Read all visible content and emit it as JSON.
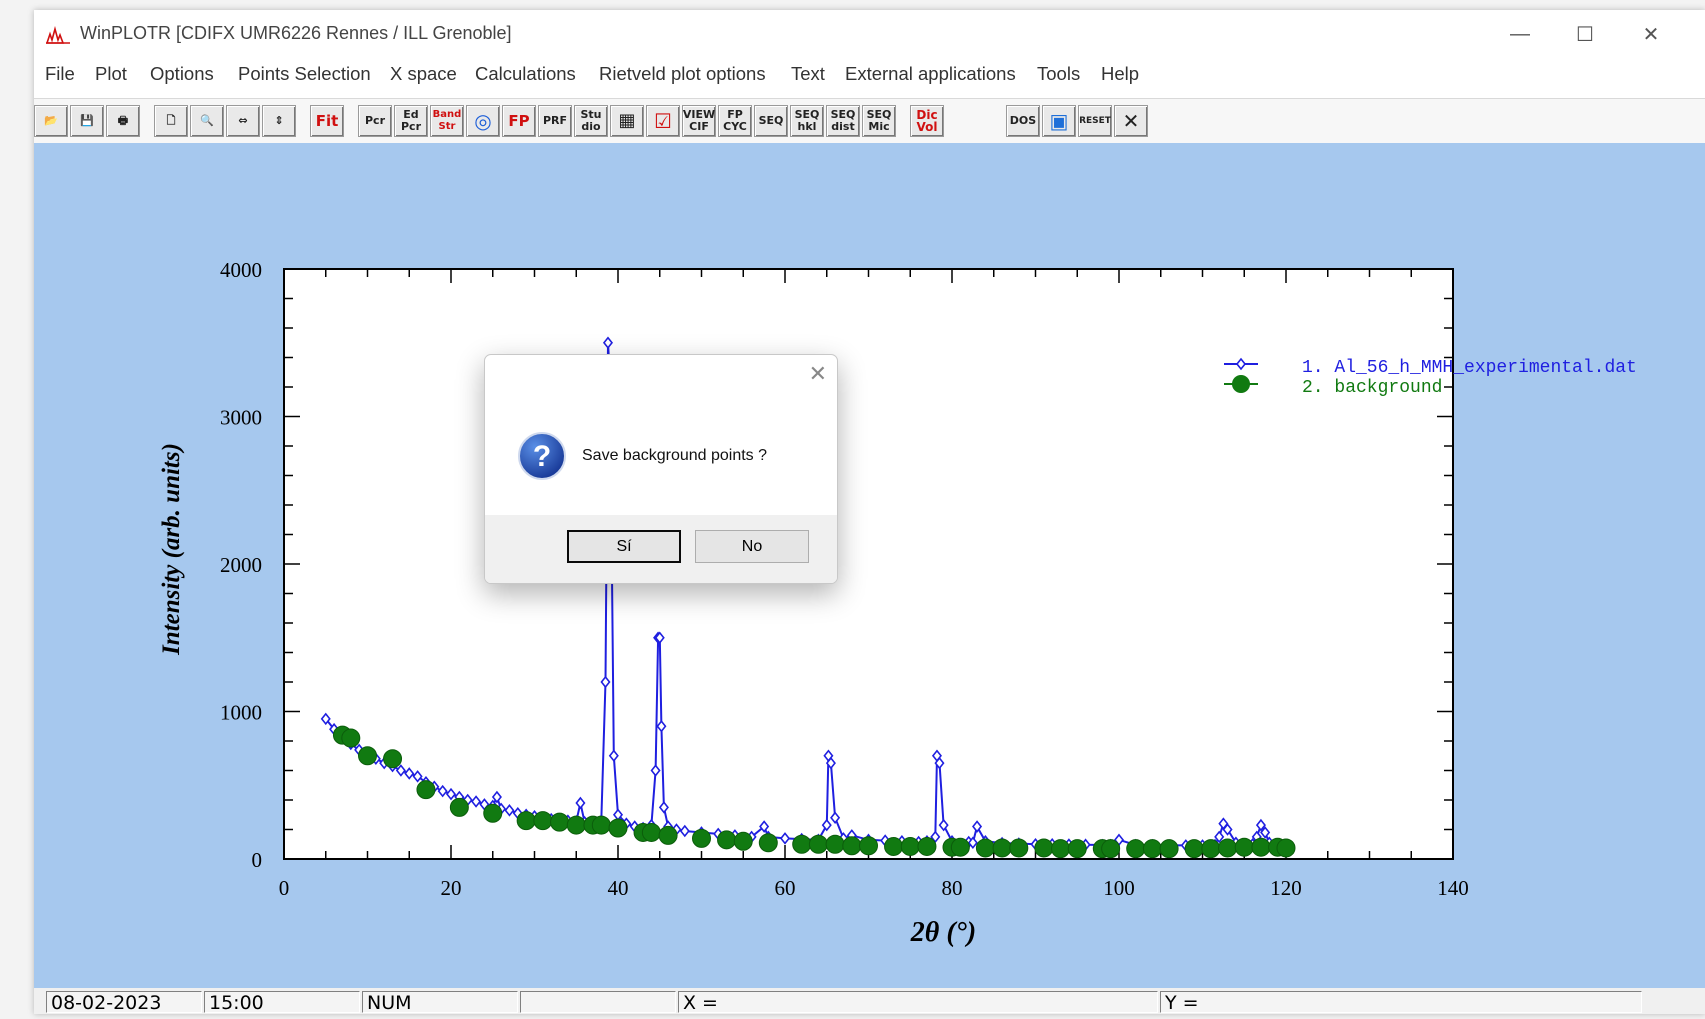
{
  "window": {
    "title": "WinPLOTR [CDIFX UMR6226 Rennes / ILL Grenoble]",
    "controls": {
      "minimize": "—",
      "maximize": "☐",
      "close": "✕"
    }
  },
  "menu": [
    "File",
    "Plot",
    "Options",
    "Points Selection",
    "X space",
    "Calculations",
    "Rietveld plot options",
    "Text",
    "External applications",
    "Tools",
    "Help"
  ],
  "toolbar": [
    {
      "icon": "open-folder-icon",
      "label": "📂"
    },
    {
      "icon": "save-disk-icon",
      "label": "💾"
    },
    {
      "icon": "print-icon",
      "label": "🖶"
    },
    {
      "icon": "print-preview-icon",
      "label": "🗋"
    },
    {
      "icon": "zoom-icon",
      "label": "🔍"
    },
    {
      "icon": "expand-horizontal-icon",
      "label": "⇔"
    },
    {
      "icon": "expand-vertical-icon",
      "label": "⇕"
    },
    {
      "icon": "fit-icon",
      "label": "Fit"
    },
    {
      "icon": "pcr-icon",
      "label": "Pcr"
    },
    {
      "icon": "edit-pcr-icon",
      "label": "Ed Pcr"
    },
    {
      "icon": "band-str-icon",
      "label": "Band Str"
    },
    {
      "icon": "target-icon",
      "label": "◎"
    },
    {
      "icon": "fp-icon",
      "label": "FP"
    },
    {
      "icon": "prf-icon",
      "label": "PRF"
    },
    {
      "icon": "studio-icon",
      "label": "Stu dio"
    },
    {
      "icon": "calculator-icon",
      "label": "▦"
    },
    {
      "icon": "checkmark-icon",
      "label": "☑"
    },
    {
      "icon": "view-cif-icon",
      "label": "VIEW CIF"
    },
    {
      "icon": "fp-cyc-icon",
      "label": "FP CYC"
    },
    {
      "icon": "seq-icon",
      "label": "SEQ"
    },
    {
      "icon": "seq-hkl-icon",
      "label": "SEQ hkl"
    },
    {
      "icon": "seq-dist-icon",
      "label": "SEQ dist"
    },
    {
      "icon": "seq-mic-icon",
      "label": "SEQ Mic"
    },
    {
      "icon": "dicvol-icon",
      "label": "Dic Vol"
    },
    {
      "icon": "dos-icon",
      "label": "DOS"
    },
    {
      "icon": "image-viewer-icon",
      "label": "▣"
    },
    {
      "icon": "reset-icon",
      "label": "RESET"
    },
    {
      "icon": "close-x-icon",
      "label": "✕"
    }
  ],
  "chart_data": {
    "type": "scatter",
    "xlabel": "2θ (°)",
    "ylabel": "Intensity (arb. units)",
    "xlim": [
      0,
      140
    ],
    "ylim": [
      0,
      4000
    ],
    "xticks": [
      0,
      20,
      40,
      60,
      80,
      100,
      120,
      140
    ],
    "yticks": [
      0,
      1000,
      2000,
      3000,
      4000
    ],
    "legend_position": "top-right",
    "series": [
      {
        "name": "1. Al_56_h_MMH_experimental.dat",
        "color": "#1f1fe0",
        "marker": "open-diamond",
        "x": [
          5,
          6,
          7,
          8,
          9,
          10,
          11,
          12,
          13,
          14,
          15,
          16,
          17,
          18,
          19,
          20,
          21,
          22,
          23,
          24,
          25,
          25.5,
          26,
          27,
          28,
          29,
          30,
          31,
          32,
          33,
          34,
          35,
          35.5,
          36,
          37,
          38,
          38.5,
          38.8,
          39,
          39.2,
          39.5,
          40,
          41,
          42,
          43,
          44,
          44.5,
          44.8,
          45,
          45.2,
          45.5,
          46,
          47,
          48,
          50,
          52,
          54,
          56,
          57.5,
          58,
          60,
          62,
          64,
          65,
          65.2,
          65.5,
          66,
          67,
          68,
          70,
          72,
          74,
          76,
          77,
          78,
          78.2,
          78.5,
          79,
          80,
          82,
          82.5,
          83,
          84,
          86,
          88,
          90,
          92,
          94,
          96,
          98,
          99,
          100,
          102,
          104,
          106,
          108,
          110,
          111.5,
          112,
          112.5,
          113,
          114,
          116,
          116.5,
          117,
          117.5,
          118,
          119,
          120
        ],
        "y": [
          950,
          880,
          820,
          780,
          740,
          700,
          680,
          650,
          630,
          600,
          580,
          560,
          520,
          490,
          460,
          440,
          420,
          400,
          390,
          370,
          360,
          420,
          340,
          330,
          310,
          300,
          290,
          280,
          270,
          265,
          260,
          255,
          380,
          250,
          240,
          260,
          1200,
          3500,
          3300,
          2400,
          700,
          300,
          240,
          220,
          210,
          230,
          600,
          1500,
          1500,
          900,
          350,
          220,
          200,
          190,
          180,
          170,
          160,
          150,
          220,
          150,
          140,
          135,
          130,
          230,
          700,
          650,
          280,
          140,
          160,
          130,
          125,
          120,
          115,
          120,
          150,
          700,
          650,
          230,
          120,
          115,
          110,
          220,
          120,
          108,
          105,
          100,
          100,
          98,
          97,
          95,
          95,
          130,
          95,
          94,
          93,
          92,
          92,
          95,
          150,
          240,
          200,
          110,
          100,
          150,
          230,
          180,
          110,
          100,
          95
        ]
      },
      {
        "name": "2. background",
        "color": "#117a11",
        "marker": "filled-octagon",
        "x": [
          7,
          8,
          10,
          13,
          17,
          21,
          25,
          29,
          31,
          33,
          35,
          37,
          38,
          40,
          43,
          44,
          46,
          50,
          53,
          55,
          58,
          62,
          64,
          66,
          68,
          70,
          73,
          75,
          77,
          80,
          81,
          84,
          86,
          88,
          91,
          93,
          95,
          98,
          99,
          102,
          104,
          106,
          109,
          111,
          113,
          115,
          117,
          119,
          120
        ],
        "y": [
          840,
          820,
          700,
          680,
          470,
          350,
          310,
          260,
          260,
          250,
          230,
          230,
          230,
          210,
          180,
          180,
          160,
          140,
          130,
          120,
          110,
          100,
          100,
          100,
          90,
          90,
          85,
          85,
          85,
          80,
          80,
          75,
          75,
          75,
          75,
          70,
          70,
          70,
          70,
          70,
          70,
          70,
          70,
          70,
          75,
          80,
          80,
          80,
          75
        ]
      }
    ]
  },
  "dialog": {
    "close": "✕",
    "message": "Save background points ?",
    "yes_label": "Sí",
    "no_label": "No"
  },
  "status": {
    "date": "08-02-2023",
    "time": "15:00",
    "num": "NUM",
    "blank": "",
    "x": "X =",
    "y": "Y ="
  }
}
